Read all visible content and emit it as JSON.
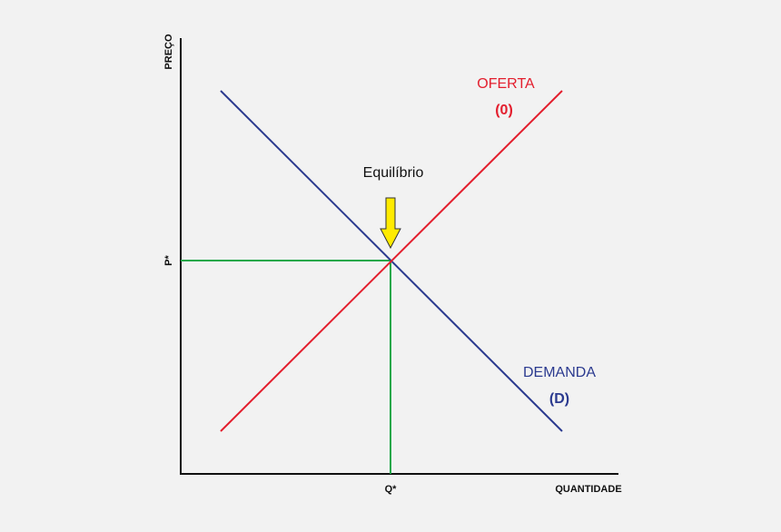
{
  "axes": {
    "y_label": "PREÇO",
    "x_label": "QUANTIDADE",
    "p_star": "P*",
    "q_star": "Q*"
  },
  "curves": [
    {
      "label": "OFERTA",
      "symbol": "(0)"
    },
    {
      "label": "DEMANDA",
      "symbol": "(D)"
    }
  ],
  "annotation": "Equilíbrio"
}
